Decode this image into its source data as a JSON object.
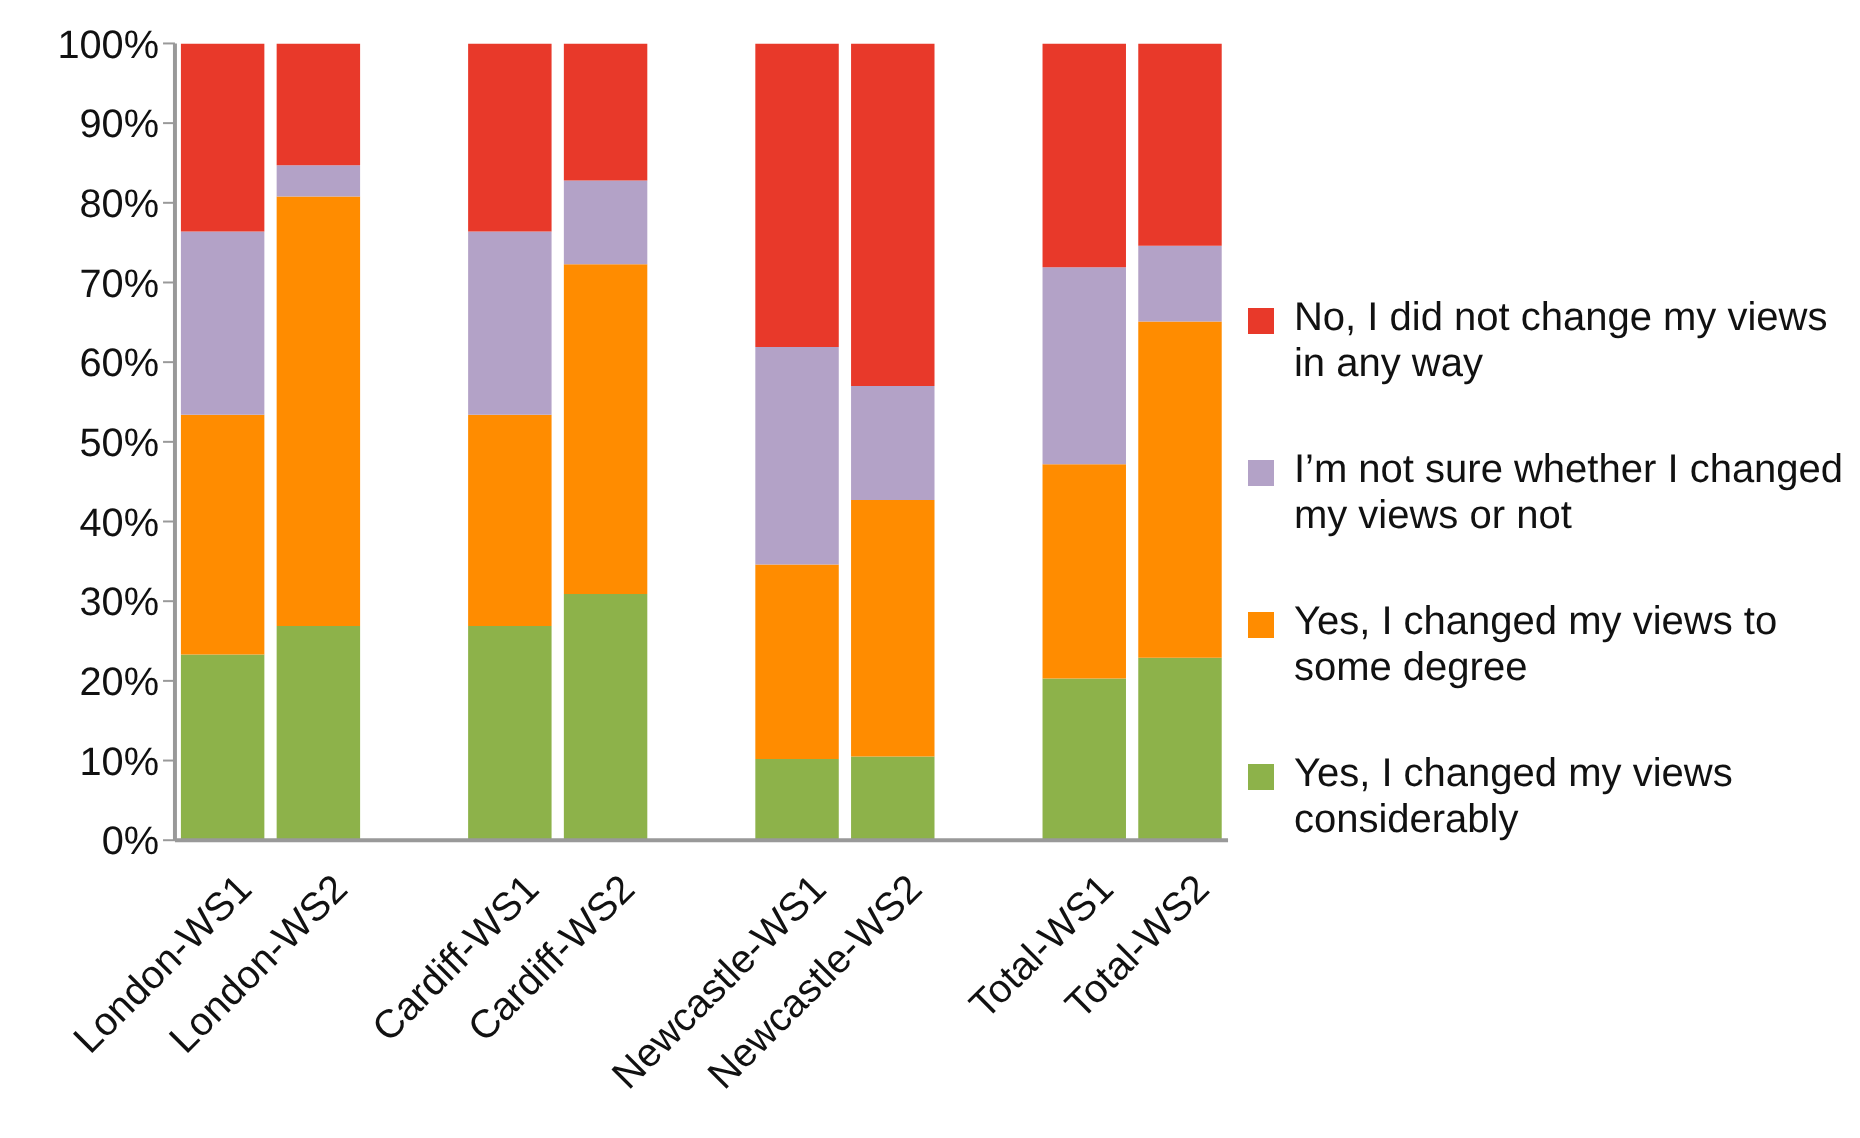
{
  "chart_data": {
    "type": "bar",
    "stacked": true,
    "categories": [
      "London-WS1",
      "London-WS2",
      null,
      "Cardiff-WS1",
      "Cardiff-WS2",
      null,
      "Newcastle-WS1",
      "Newcastle-WS2",
      null,
      "Total-WS1",
      "Total-WS2"
    ],
    "series": [
      {
        "name": "Yes, I changed my views considerably",
        "color": "#8db24a",
        "values": [
          23.3,
          26.9,
          null,
          26.9,
          30.9,
          null,
          10.2,
          10.5,
          null,
          20.3,
          22.9
        ]
      },
      {
        "name": "Yes, I changed my views to some degree",
        "color": "#ff8c00",
        "values": [
          30.1,
          53.9,
          null,
          26.5,
          41.4,
          null,
          24.4,
          32.2,
          null,
          26.9,
          42.2
        ]
      },
      {
        "name": "I’m not sure whether I changed my views or not",
        "color": "#b3a2c7",
        "values": [
          23.0,
          3.9,
          null,
          23.0,
          10.5,
          null,
          27.3,
          14.3,
          null,
          24.7,
          9.5
        ]
      },
      {
        "name": "No, I did not change my views in any way",
        "color": "#e8392a",
        "values": [
          23.6,
          15.3,
          null,
          23.6,
          17.2,
          null,
          38.1,
          43.0,
          null,
          28.1,
          25.4
        ]
      }
    ],
    "ylim": [
      0,
      100
    ],
    "yticks": [
      {
        "value": 0,
        "label": "0%"
      },
      {
        "value": 10,
        "label": "10%"
      },
      {
        "value": 20,
        "label": "20%"
      },
      {
        "value": 30,
        "label": "30%"
      },
      {
        "value": 40,
        "label": "40%"
      },
      {
        "value": 50,
        "label": "50%"
      },
      {
        "value": 60,
        "label": "60%"
      },
      {
        "value": 70,
        "label": "70%"
      },
      {
        "value": 80,
        "label": "80%"
      },
      {
        "value": 90,
        "label": "90%"
      },
      {
        "value": 100,
        "label": "100%"
      }
    ],
    "grid": false,
    "legend": "right"
  }
}
